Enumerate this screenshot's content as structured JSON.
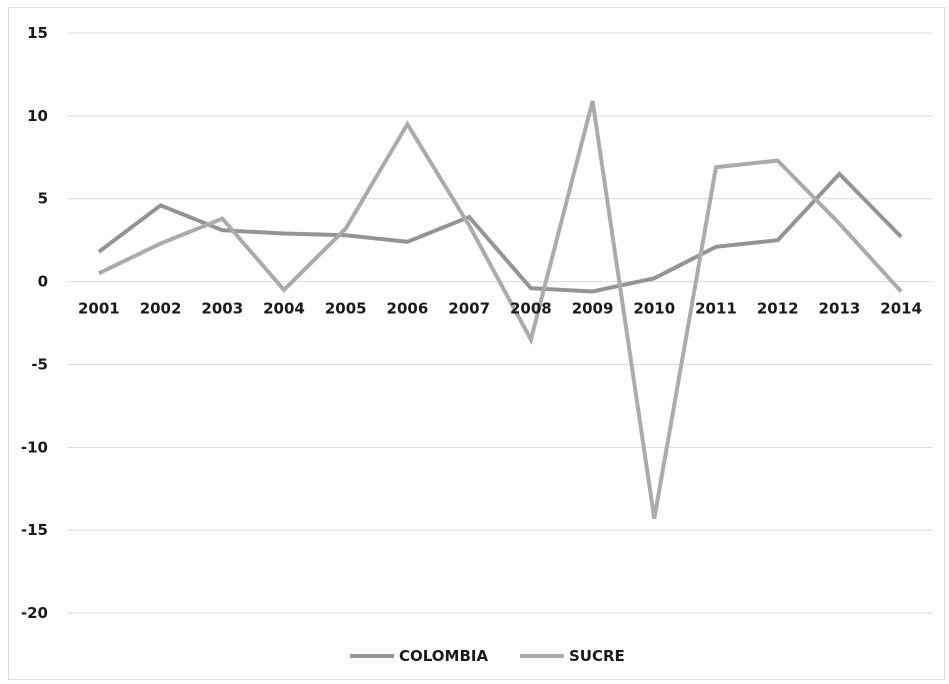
{
  "chart_data": {
    "type": "line",
    "title": "",
    "xlabel": "",
    "ylabel": "",
    "categories": [
      "2001",
      "2002",
      "2003",
      "2004",
      "2005",
      "2006",
      "2007",
      "2008",
      "2009",
      "2010",
      "2011",
      "2012",
      "2013",
      "2014"
    ],
    "y_ticks": [
      "15",
      "10",
      "5",
      "0",
      "-5",
      "-10",
      "-15",
      "-20"
    ],
    "ylim": [
      -20,
      15
    ],
    "grid": true,
    "legend_position": "bottom",
    "series": [
      {
        "name": "COLOMBIA",
        "color": "#949494",
        "values": [
          1.8,
          4.6,
          3.1,
          2.9,
          2.8,
          2.4,
          3.9,
          -0.4,
          -0.6,
          0.2,
          2.1,
          2.5,
          6.5,
          2.7
        ]
      },
      {
        "name": "SUCRE",
        "color": "#ababab",
        "values": [
          0.5,
          2.3,
          3.8,
          -0.5,
          3.2,
          9.5,
          3.4,
          -3.5,
          10.9,
          -14.3,
          6.9,
          7.3,
          3.5,
          -0.6
        ]
      }
    ]
  }
}
